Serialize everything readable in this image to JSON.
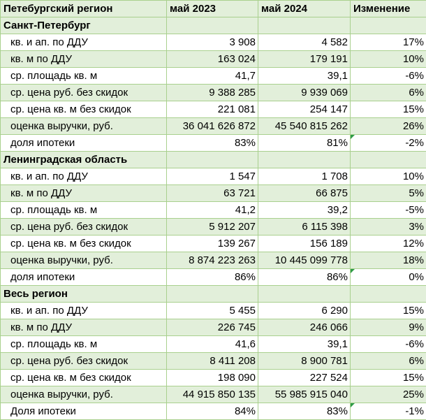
{
  "header": {
    "region": "Петебургский регион",
    "col_2023": "май 2023",
    "col_2024": "май 2024",
    "col_change": "Изменение"
  },
  "sections": [
    {
      "title": "Санкт-Петербург",
      "rows": [
        {
          "label": "кв. и ап. по ДДУ",
          "v2023": "3 908",
          "v2024": "4 582",
          "change": "17%"
        },
        {
          "label": "кв. м по ДДУ",
          "v2023": "163 024",
          "v2024": "179 191",
          "change": "10%"
        },
        {
          "label": "ср. площадь кв. м",
          "v2023": "41,7",
          "v2024": "39,1",
          "change": "-6%"
        },
        {
          "label": "ср. цена руб. без скидок",
          "v2023": "9 388 285",
          "v2024": "9 939 069",
          "change": "6%"
        },
        {
          "label": "ср. цена кв. м без скидок",
          "v2023": "221 081",
          "v2024": "254 147",
          "change": "15%"
        },
        {
          "label": "оценка выручки, руб.",
          "v2023": "36 041 626 872",
          "v2024": "45 540 815 262",
          "change": "26%"
        },
        {
          "label": "доля ипотеки",
          "v2023": "83%",
          "v2024": "81%",
          "change": "-2%",
          "change_marked": true
        }
      ]
    },
    {
      "title": "Ленинградская область",
      "rows": [
        {
          "label": "кв. и ап. по ДДУ",
          "v2023": "1 547",
          "v2024": "1 708",
          "change": "10%"
        },
        {
          "label": "кв. м по ДДУ",
          "v2023": "63 721",
          "v2024": "66 875",
          "change": "5%"
        },
        {
          "label": "ср. площадь кв. м",
          "v2023": "41,2",
          "v2024": "39,2",
          "change": "-5%"
        },
        {
          "label": "ср. цена руб. без скидок",
          "v2023": "5 912 207",
          "v2024": "6 115 398",
          "change": "3%"
        },
        {
          "label": "ср. цена кв. м без скидок",
          "v2023": "139 267",
          "v2024": "156 189",
          "change": "12%"
        },
        {
          "label": "оценка выручки, руб.",
          "v2023": "8 874 223 263",
          "v2024": "10 445 099 778",
          "change": "18%"
        },
        {
          "label": "доля ипотеки",
          "v2023": "86%",
          "v2024": "86%",
          "change": "0%",
          "change_marked": true
        }
      ]
    },
    {
      "title": "Весь регион",
      "rows": [
        {
          "label": "кв. и ап. по ДДУ",
          "v2023": "5 455",
          "v2024": "6 290",
          "change": "15%"
        },
        {
          "label": "кв. м по ДДУ",
          "v2023": "226 745",
          "v2024": "246 066",
          "change": "9%"
        },
        {
          "label": "ср. площадь кв. м",
          "v2023": "41,6",
          "v2024": "39,1",
          "change": "-6%"
        },
        {
          "label": "ср. цена руб. без скидок",
          "v2023": "8 411 208",
          "v2024": "8 900 781",
          "change": "6%"
        },
        {
          "label": "ср. цена кв. м без скидок",
          "v2023": "198 090",
          "v2024": "227 524",
          "change": "15%"
        },
        {
          "label": "оценка выручки, руб.",
          "v2023": "44 915 850 135",
          "v2024": "55 985 915 040",
          "change": "25%"
        },
        {
          "label": "Доля ипотеки",
          "v2023": "84%",
          "v2024": "83%",
          "change": "-1%",
          "change_marked": true
        }
      ]
    }
  ],
  "colors": {
    "border": "#a9d08e",
    "band": "#e2efda",
    "comment_marker": "#2e9b46"
  }
}
